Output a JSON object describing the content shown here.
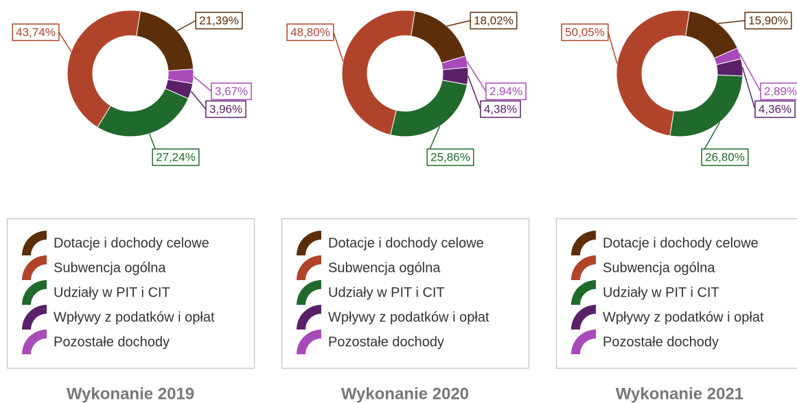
{
  "chart_data": [
    {
      "type": "pie",
      "title": "Wykonanie 2019",
      "categories": [
        "Dotacje i dochody celowe",
        "Subwencja ogólna",
        "Udziały w PIT i CIT",
        "Wpływy z podatków i opłat",
        "Pozostałe dochody"
      ],
      "colors": [
        "#5c2e0a",
        "#b0442a",
        "#1f6a2c",
        "#5a2168",
        "#a84ab8"
      ],
      "values": [
        21.39,
        43.74,
        27.24,
        3.96,
        3.67
      ],
      "value_labels": [
        "21,39%",
        "43,74%",
        "27,24%",
        "3,96%",
        "3,67%"
      ]
    },
    {
      "type": "pie",
      "title": "Wykonanie 2020",
      "categories": [
        "Dotacje i dochody celowe",
        "Subwencja ogólna",
        "Udziały w PIT i CIT",
        "Wpływy z podatków i opłat",
        "Pozostałe dochody"
      ],
      "colors": [
        "#5c2e0a",
        "#b0442a",
        "#1f6a2c",
        "#5a2168",
        "#a84ab8"
      ],
      "values": [
        18.02,
        48.8,
        25.86,
        4.38,
        2.94
      ],
      "value_labels": [
        "18,02%",
        "48,80%",
        "25,86%",
        "4,38%",
        "2,94%"
      ]
    },
    {
      "type": "pie",
      "title": "Wykonanie 2021",
      "categories": [
        "Dotacje i dochody celowe",
        "Subwencja ogólna",
        "Udziały w PIT i CIT",
        "Wpływy z podatków i opłat",
        "Pozostałe dochody"
      ],
      "colors": [
        "#5c2e0a",
        "#b0442a",
        "#1f6a2c",
        "#5a2168",
        "#a84ab8"
      ],
      "values": [
        15.9,
        50.05,
        26.8,
        4.36,
        2.89
      ],
      "value_labels": [
        "15,90%",
        "50,05%",
        "26,80%",
        "4,36%",
        "2,89%"
      ]
    }
  ]
}
